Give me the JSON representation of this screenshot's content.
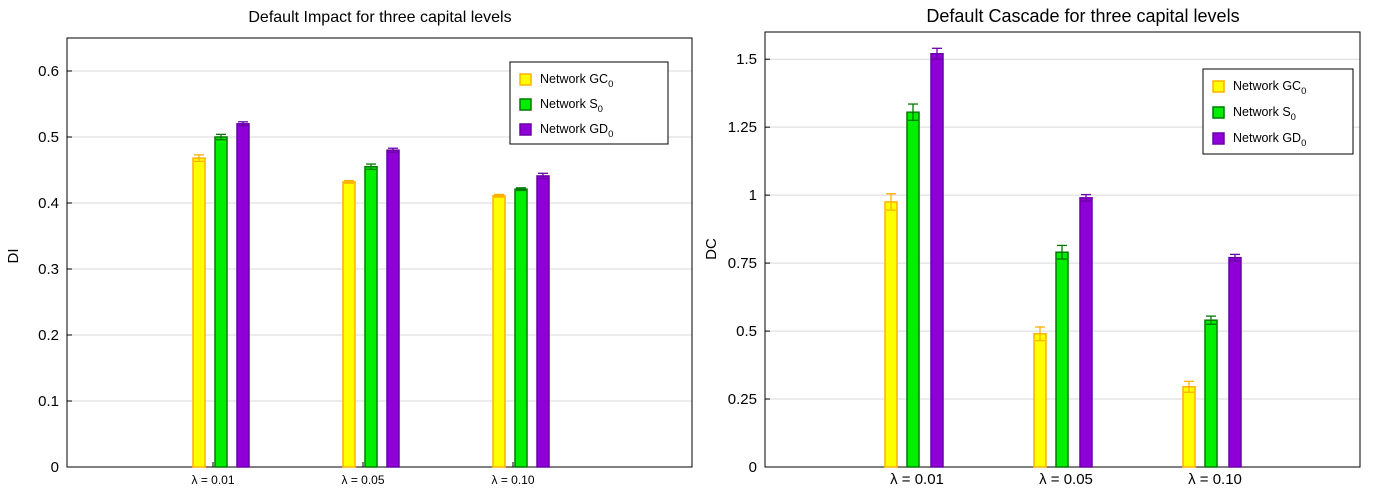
{
  "chart_data": [
    {
      "type": "bar",
      "title": "Default Impact for three capital levels",
      "xlabel": "",
      "ylabel": "DI",
      "categories": [
        "λ = 0.01",
        "λ = 0.05",
        "λ = 0.10"
      ],
      "ylim": [
        0,
        0.65
      ],
      "yticks": [
        0,
        0.1,
        0.2,
        0.3,
        0.4,
        0.5,
        0.6
      ],
      "ytick_labels": [
        "0",
        "0.1",
        "0.2",
        "0.3",
        "0.4",
        "0.5",
        "0.6"
      ],
      "grid": true,
      "legend_position": "top-right",
      "series": [
        {
          "name": "Network GC",
          "sub": "0",
          "fill": "#ffff00",
          "stroke": "#ffb000",
          "values": [
            0.468,
            0.432,
            0.411
          ],
          "errors": [
            0.005,
            0.002,
            0.002
          ]
        },
        {
          "name": "Network S",
          "sub": "0",
          "fill": "#00ee00",
          "stroke": "#007a00",
          "values": [
            0.5,
            0.455,
            0.421
          ],
          "errors": [
            0.004,
            0.004,
            0.002
          ]
        },
        {
          "name": "Network GD",
          "sub": "0",
          "fill": "#8f00d8",
          "stroke": "#6a00a8",
          "values": [
            0.52,
            0.48,
            0.441
          ],
          "errors": [
            0.003,
            0.003,
            0.004
          ]
        }
      ]
    },
    {
      "type": "bar",
      "title": "Default Cascade for three capital levels",
      "xlabel": "",
      "ylabel": "DC",
      "categories": [
        "λ = 0.01",
        "λ = 0.05",
        "λ = 0.10"
      ],
      "ylim": [
        0,
        1.6
      ],
      "yticks": [
        0,
        0.25,
        0.5,
        0.75,
        1,
        1.25,
        1.5
      ],
      "ytick_labels": [
        "0",
        "0.25",
        "0.5",
        "0.75",
        "1",
        "1.25",
        "1.5"
      ],
      "grid": true,
      "legend_position": "top-right",
      "series": [
        {
          "name": "Network GC",
          "sub": "0",
          "fill": "#ffff00",
          "stroke": "#ffb000",
          "values": [
            0.975,
            0.49,
            0.295
          ],
          "errors": [
            0.03,
            0.025,
            0.02
          ]
        },
        {
          "name": "Network S",
          "sub": "0",
          "fill": "#00ee00",
          "stroke": "#007a00",
          "values": [
            1.305,
            0.79,
            0.54
          ],
          "errors": [
            0.03,
            0.025,
            0.015
          ]
        },
        {
          "name": "Network GD",
          "sub": "0",
          "fill": "#8f00d8",
          "stroke": "#6a00a8",
          "values": [
            1.52,
            0.99,
            0.77
          ],
          "errors": [
            0.02,
            0.012,
            0.012
          ]
        }
      ]
    }
  ]
}
